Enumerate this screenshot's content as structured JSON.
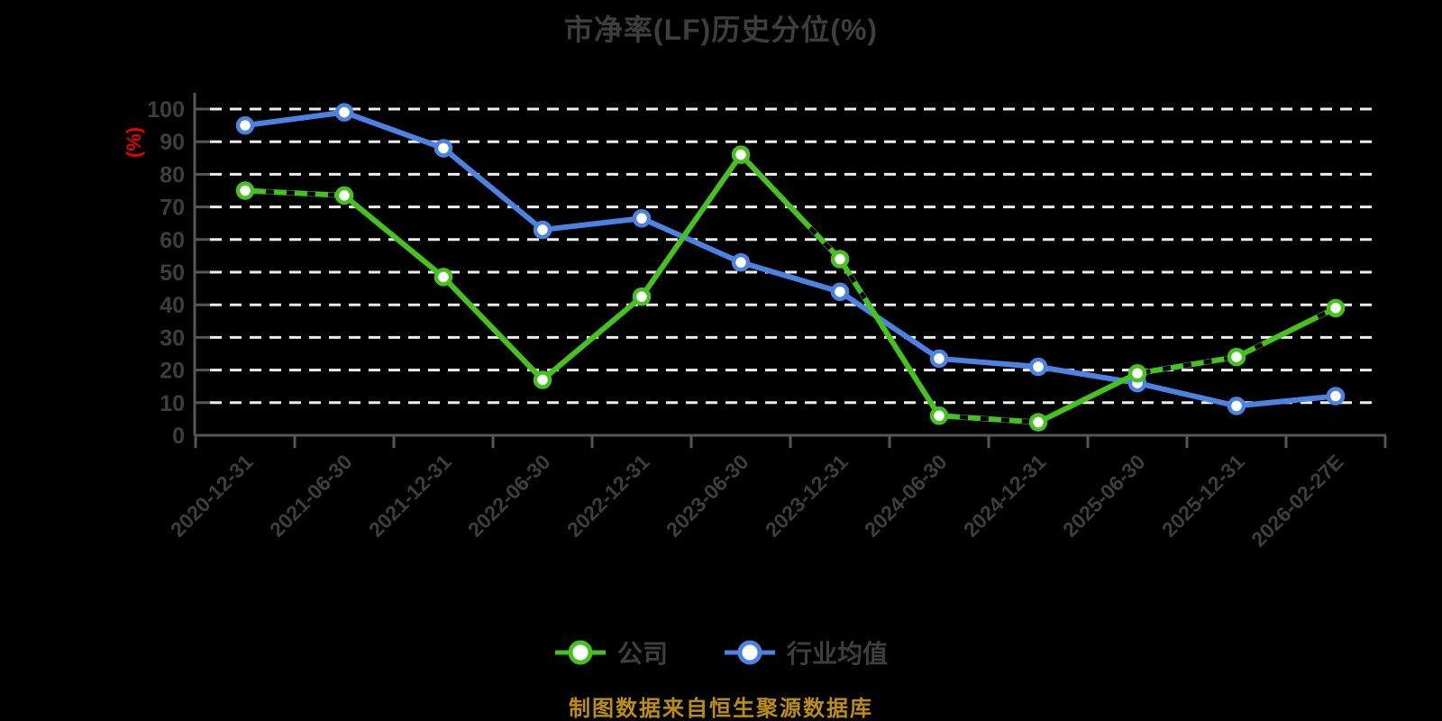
{
  "title": "市净率(LF)历史分位(%)",
  "source_note": "制图数据来自恒生聚源数据库",
  "colors": {
    "background": "#000000",
    "text": "#3E3E3E",
    "axis": "#565656",
    "grid": "#EDEDED",
    "company": "#46C21E",
    "industry": "#4C82E2",
    "y_unit_label": "#E60000",
    "source_text": "#BB8E10",
    "marker_fill": "#FFFFFF",
    "dash_overlay": "#000000"
  },
  "chart_data": {
    "type": "line",
    "title": "市净率(LF)历史分位(%)",
    "xlabel": "",
    "ylabel": "(%)",
    "ylim": [
      0,
      100
    ],
    "y_ticks": [
      0,
      10,
      20,
      30,
      40,
      50,
      60,
      70,
      80,
      90,
      100
    ],
    "grid": "horizontal-white-dashed",
    "legend_position": "bottom-center",
    "categories": [
      "2020-12-31",
      "2021-06-30",
      "2021-12-31",
      "2022-06-30",
      "2022-12-31",
      "2023-06-30",
      "2023-12-31",
      "2024-06-30",
      "2024-12-31",
      "2025-06-30",
      "2025-12-31",
      "2026-02-27E"
    ],
    "series": [
      {
        "name": "公司",
        "key": "company",
        "color": "#46C21E",
        "values": [
          75,
          73.5,
          48.5,
          17,
          42.5,
          86,
          54,
          6,
          4,
          19,
          24,
          39
        ],
        "dash_overlay_segments": [
          [
            0,
            0.9
          ],
          [
            5.7,
            6.25
          ],
          [
            7.0,
            8.0
          ],
          [
            9.05,
            9.95
          ],
          [
            10.0,
            10.3
          ],
          [
            10.82,
            11.0
          ]
        ]
      },
      {
        "name": "行业均值",
        "key": "industry-average",
        "color": "#4C82E2",
        "values": [
          95,
          99,
          88,
          63,
          66.5,
          53,
          44,
          23.5,
          21,
          16,
          9,
          12
        ],
        "dash_overlay_segments": []
      }
    ]
  }
}
